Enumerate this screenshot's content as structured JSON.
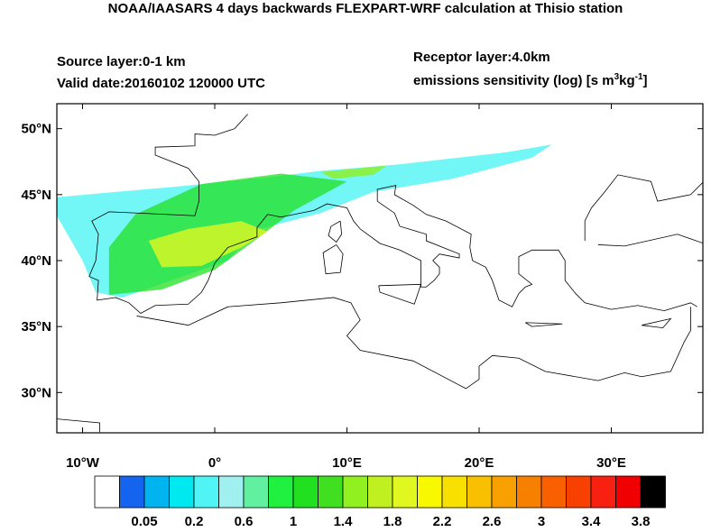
{
  "title": "NOAA/IAASARS 4 days backwards FLEXPART-WRF calculation at Thisio station",
  "source_layer": "Source layer:0-1 km",
  "valid_date": "Valid date:20160102 120000 UTC",
  "receptor_layer": "Receptor layer:4.0km",
  "units": {
    "prefix": "emissions sensitivity (log) [s m",
    "sup1": "3",
    "mid": "kg",
    "sup2": "-1",
    "suffix": "]"
  },
  "lat_labels": [
    "50°N",
    "45°N",
    "40°N",
    "35°N",
    "30°N"
  ],
  "lon_labels": [
    "10°W",
    "0°",
    "10°E",
    "20°E",
    "30°E"
  ],
  "colorbar": {
    "colors": [
      "#ffffff",
      "#1464f0",
      "#00b4f0",
      "#00e8f0",
      "#50f4f4",
      "#a0f0f0",
      "#60f0a0",
      "#20f040",
      "#20e020",
      "#40e020",
      "#90f020",
      "#c0f020",
      "#e0f820",
      "#f8f800",
      "#f8e000",
      "#f8c000",
      "#f8a000",
      "#f88000",
      "#f86000",
      "#f84000",
      "#f82010",
      "#f00000",
      "#000000"
    ],
    "labels": [
      0.05,
      0.2,
      0.6,
      1,
      1.4,
      1.8,
      2.2,
      2.6,
      3,
      3.4,
      3.8
    ]
  }
}
